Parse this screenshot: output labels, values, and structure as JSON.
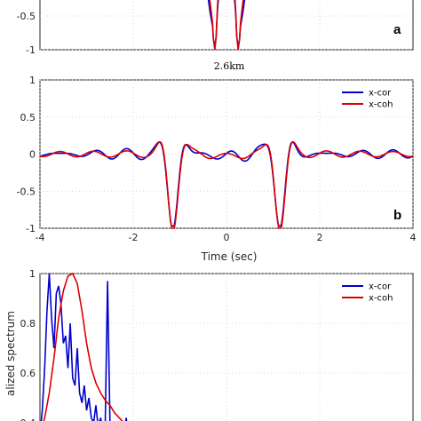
{
  "chart_data": [
    {
      "panel": "a",
      "type": "line",
      "title": "",
      "ylim": [
        -1,
        0
      ],
      "yticks": [
        "-0.5",
        "-1"
      ],
      "grid": true,
      "panel_label": "a",
      "series": [
        {
          "name": "x-cor",
          "color": "#0000cc",
          "x": [
            -0.45,
            -0.4,
            -0.35,
            -0.3,
            -0.28,
            -0.25,
            -0.22,
            -0.2,
            -0.18,
            -0.15,
            -0.12,
            -0.1,
            -0.05,
            0,
            0.05,
            0.1,
            0.12,
            0.15,
            0.18,
            0.2,
            0.22,
            0.25,
            0.28,
            0.3,
            0.35,
            0.4,
            0.45
          ],
          "y": [
            0,
            -0.2,
            -0.45,
            -0.65,
            -0.85,
            -0.95,
            -0.8,
            -0.5,
            -0.3,
            -0.15,
            -0.25,
            -0.2,
            -0.15,
            -0.1,
            -0.15,
            -0.2,
            -0.25,
            -0.15,
            -0.3,
            -0.5,
            -0.8,
            -0.95,
            -0.85,
            -0.65,
            -0.45,
            -0.2,
            0
          ]
        },
        {
          "name": "x-coh",
          "color": "#dd0000",
          "x": [
            -0.45,
            -0.4,
            -0.35,
            -0.3,
            -0.28,
            -0.25,
            -0.22,
            -0.2,
            -0.18,
            -0.15,
            -0.12,
            -0.1,
            -0.05,
            0,
            0.05,
            0.1,
            0.12,
            0.15,
            0.18,
            0.2,
            0.22,
            0.25,
            0.28,
            0.3,
            0.35,
            0.4,
            0.45
          ],
          "y": [
            0,
            -0.1,
            -0.3,
            -0.6,
            -0.85,
            -1.0,
            -0.8,
            -0.45,
            -0.2,
            -0.1,
            -0.2,
            -0.15,
            -0.1,
            -0.05,
            -0.1,
            -0.15,
            -0.2,
            -0.1,
            -0.2,
            -0.45,
            -0.8,
            -1.0,
            -0.85,
            -0.6,
            -0.3,
            -0.1,
            0
          ]
        }
      ]
    },
    {
      "panel": "b",
      "type": "line",
      "title": "2.6km",
      "xlabel": "Time (sec)",
      "xlim": [
        -4,
        4
      ],
      "ylim": [
        -1,
        1
      ],
      "xticks": [
        "-4",
        "-2",
        "0",
        "2",
        "4"
      ],
      "yticks": [
        "1",
        "0.5",
        "0",
        "-0.5",
        "-1"
      ],
      "grid": true,
      "legend": "top-right",
      "panel_label": "b",
      "series": [
        {
          "name": "x-cor",
          "color": "#0000cc"
        },
        {
          "name": "x-coh",
          "color": "#dd0000"
        }
      ]
    },
    {
      "panel": "c",
      "type": "line",
      "ylabel": "alized spectrum",
      "ylim": [
        0.35,
        1
      ],
      "yticks": [
        "1",
        "0.8",
        "0.6",
        "0.4"
      ],
      "grid": true,
      "legend": "top-right",
      "series": [
        {
          "name": "x-cor",
          "color": "#0000cc",
          "x": [
            0.0,
            0.1,
            0.2,
            0.3,
            0.4,
            0.5,
            0.6,
            0.7,
            0.8,
            0.9,
            1.0,
            1.1,
            1.2,
            1.3,
            1.4,
            1.5,
            1.6,
            1.7,
            1.8,
            1.9,
            2.0,
            2.1,
            2.2,
            2.3,
            2.4,
            2.5,
            2.6,
            2.7,
            2.8,
            2.9,
            3.0,
            3.1,
            3.2,
            3.3,
            3.4,
            3.5,
            3.6,
            3.7,
            3.8,
            3.9,
            4.0
          ],
          "y": [
            0.35,
            0.45,
            0.62,
            0.85,
            1.0,
            0.82,
            0.7,
            0.92,
            0.95,
            0.88,
            0.72,
            0.75,
            0.62,
            0.8,
            0.58,
            0.55,
            0.7,
            0.52,
            0.48,
            0.55,
            0.45,
            0.5,
            0.42,
            0.4,
            0.47,
            0.38,
            0.42,
            0.36,
            0.4,
            0.97,
            0.4,
            0.36,
            0.38,
            0.35,
            0.36,
            0.38,
            0.35,
            0.42,
            0.35,
            0.35,
            0.35
          ]
        },
        {
          "name": "x-coh",
          "color": "#dd0000",
          "x": [
            0.0,
            0.2,
            0.4,
            0.6,
            0.8,
            1.0,
            1.2,
            1.4,
            1.6,
            1.8,
            2.0,
            2.2,
            2.4,
            2.6,
            2.8,
            3.0,
            3.2,
            3.4,
            3.6,
            3.8,
            4.0
          ],
          "y": [
            0.35,
            0.42,
            0.52,
            0.66,
            0.82,
            0.93,
            0.99,
            1.0,
            0.96,
            0.85,
            0.72,
            0.62,
            0.56,
            0.52,
            0.49,
            0.47,
            0.44,
            0.42,
            0.4,
            0.38,
            0.37
          ]
        }
      ]
    }
  ]
}
